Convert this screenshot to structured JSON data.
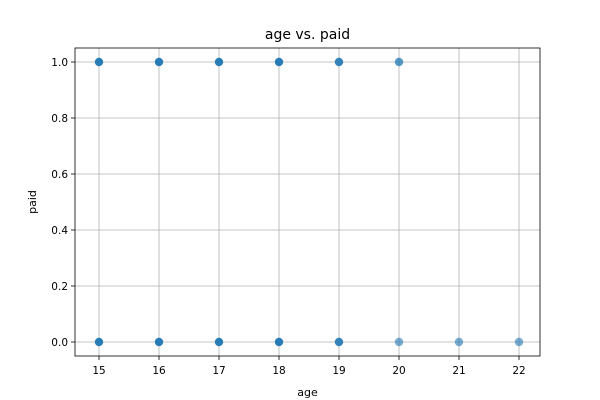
{
  "chart_data": {
    "type": "scatter",
    "title": "age vs. paid",
    "xlabel": "age",
    "ylabel": "paid",
    "xlim": [
      14.6,
      22.35
    ],
    "ylim": [
      -0.05,
      1.05
    ],
    "xticks": [
      15,
      16,
      17,
      18,
      19,
      20,
      21,
      22
    ],
    "yticks": [
      0.0,
      0.2,
      0.4,
      0.6,
      0.8,
      1.0
    ],
    "xtick_labels": [
      "15",
      "16",
      "17",
      "18",
      "19",
      "20",
      "21",
      "22"
    ],
    "ytick_labels": [
      "0.0",
      "0.2",
      "0.4",
      "0.6",
      "0.8",
      "1.0"
    ],
    "grid": true,
    "point_color": "#1f77b4",
    "points": [
      {
        "x": 15,
        "y": 1,
        "opacity": 0.95
      },
      {
        "x": 16,
        "y": 1,
        "opacity": 0.95
      },
      {
        "x": 17,
        "y": 1,
        "opacity": 0.95
      },
      {
        "x": 18,
        "y": 1,
        "opacity": 0.95
      },
      {
        "x": 19,
        "y": 1,
        "opacity": 0.9
      },
      {
        "x": 20,
        "y": 1,
        "opacity": 0.75
      },
      {
        "x": 15,
        "y": 0,
        "opacity": 0.95
      },
      {
        "x": 16,
        "y": 0,
        "opacity": 0.95
      },
      {
        "x": 17,
        "y": 0,
        "opacity": 0.95
      },
      {
        "x": 18,
        "y": 0,
        "opacity": 0.95
      },
      {
        "x": 19,
        "y": 0,
        "opacity": 0.9
      },
      {
        "x": 20,
        "y": 0,
        "opacity": 0.6
      },
      {
        "x": 21,
        "y": 0,
        "opacity": 0.6
      },
      {
        "x": 22,
        "y": 0,
        "opacity": 0.6
      }
    ]
  }
}
